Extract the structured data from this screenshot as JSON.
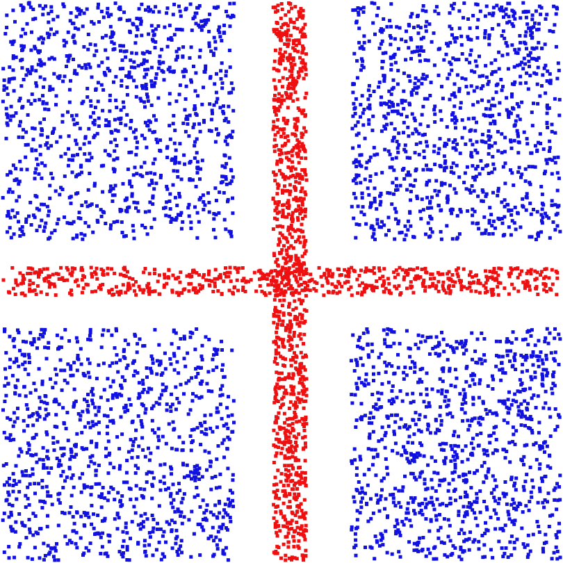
{
  "chart_data": {
    "type": "scatter",
    "xlim": [
      0,
      1
    ],
    "ylim": [
      0,
      1
    ],
    "grid": false,
    "axes_visible": false,
    "legend": false,
    "marker": "square",
    "seed": 7,
    "series": [
      {
        "color": "#1010e0",
        "distribution": "uniform",
        "points_per_region": 1000,
        "regions": [
          {
            "x": [
              0.0,
              0.415
            ],
            "y": [
              0.0,
              0.415
            ]
          },
          {
            "x": [
              0.625,
              1.0
            ],
            "y": [
              0.0,
              0.415
            ]
          },
          {
            "x": [
              0.0,
              0.415
            ],
            "y": [
              0.575,
              1.0
            ]
          },
          {
            "x": [
              0.625,
              1.0
            ],
            "y": [
              0.575,
              1.0
            ]
          }
        ]
      },
      {
        "color": "#ee1010",
        "distribution": "uniform",
        "regions": [
          {
            "x": [
              0.485,
              0.545
            ],
            "y": [
              0.0,
              1.0
            ],
            "points": 1000
          },
          {
            "x": [
              0.0,
              1.0
            ],
            "y": [
              0.475,
              0.525
            ],
            "points": 650
          }
        ]
      }
    ]
  }
}
